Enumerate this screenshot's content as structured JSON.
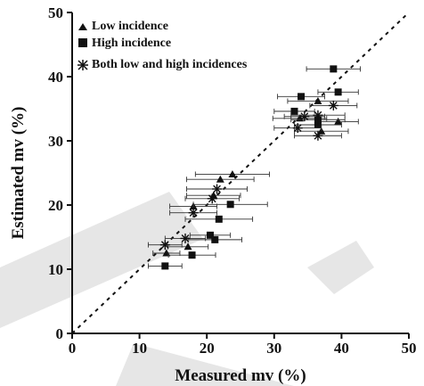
{
  "chart_data": {
    "type": "scatter",
    "title": "",
    "xlabel": "Measured mv (%)",
    "ylabel": "Estimated mv (%)",
    "xlim": [
      0,
      50
    ],
    "ylim": [
      0,
      50
    ],
    "xticks": [
      "0",
      "10",
      "20",
      "30",
      "40",
      "50"
    ],
    "yticks": [
      "0",
      "10",
      "20",
      "30",
      "40",
      "50"
    ],
    "grid": false,
    "legend_position": "top-left",
    "reference_line": "1:1 dashed",
    "error_bars": "horizontal",
    "series": [
      {
        "name": "Low incidence",
        "marker": "triangle",
        "points": [
          {
            "x": 14.0,
            "y": 12.5,
            "xerr": 2.0
          },
          {
            "x": 17.2,
            "y": 13.5,
            "xerr": 3.0
          },
          {
            "x": 18.0,
            "y": 19.8,
            "xerr": 3.5
          },
          {
            "x": 21.0,
            "y": 21.5,
            "xerr": 4.0
          },
          {
            "x": 22.0,
            "y": 24.0,
            "xerr": 5.0
          },
          {
            "x": 23.8,
            "y": 24.8,
            "xerr": 5.5
          },
          {
            "x": 33.8,
            "y": 33.5,
            "xerr": 4.0
          },
          {
            "x": 36.5,
            "y": 36.2,
            "xerr": 4.5
          },
          {
            "x": 37.0,
            "y": 31.5,
            "xerr": 4.0
          },
          {
            "x": 39.5,
            "y": 33.0,
            "xerr": 3.0
          }
        ]
      },
      {
        "name": "High incidence",
        "marker": "square",
        "points": [
          {
            "x": 13.8,
            "y": 10.5,
            "xerr": 2.5
          },
          {
            "x": 17.8,
            "y": 12.2,
            "xerr": 3.5
          },
          {
            "x": 20.5,
            "y": 15.3,
            "xerr": 3.0
          },
          {
            "x": 21.2,
            "y": 14.6,
            "xerr": 4.0
          },
          {
            "x": 21.8,
            "y": 17.8,
            "xerr": 5.0
          },
          {
            "x": 23.5,
            "y": 20.1,
            "xerr": 5.5
          },
          {
            "x": 33.0,
            "y": 34.6,
            "xerr": 3.0
          },
          {
            "x": 34.0,
            "y": 36.9,
            "xerr": 3.5
          },
          {
            "x": 36.5,
            "y": 32.5,
            "xerr": 3.5
          },
          {
            "x": 36.5,
            "y": 33.3,
            "xerr": 4.0
          },
          {
            "x": 38.8,
            "y": 41.2,
            "xerr": 4.0
          },
          {
            "x": 39.5,
            "y": 37.6,
            "xerr": 3.0
          }
        ]
      },
      {
        "name": "Both low and high incidences",
        "marker": "asterisk",
        "points": [
          {
            "x": 13.8,
            "y": 13.8,
            "xerr": 2.5
          },
          {
            "x": 16.8,
            "y": 14.8,
            "xerr": 3.0
          },
          {
            "x": 18.0,
            "y": 18.8,
            "xerr": 3.5
          },
          {
            "x": 20.8,
            "y": 21.0,
            "xerr": 4.0
          },
          {
            "x": 21.5,
            "y": 22.5,
            "xerr": 4.5
          },
          {
            "x": 33.5,
            "y": 32.0,
            "xerr": 3.5
          },
          {
            "x": 34.5,
            "y": 33.8,
            "xerr": 3.0
          },
          {
            "x": 36.5,
            "y": 30.8,
            "xerr": 3.5
          },
          {
            "x": 36.5,
            "y": 34.0,
            "xerr": 4.0
          },
          {
            "x": 38.8,
            "y": 35.5,
            "xerr": 3.5
          }
        ]
      }
    ]
  }
}
